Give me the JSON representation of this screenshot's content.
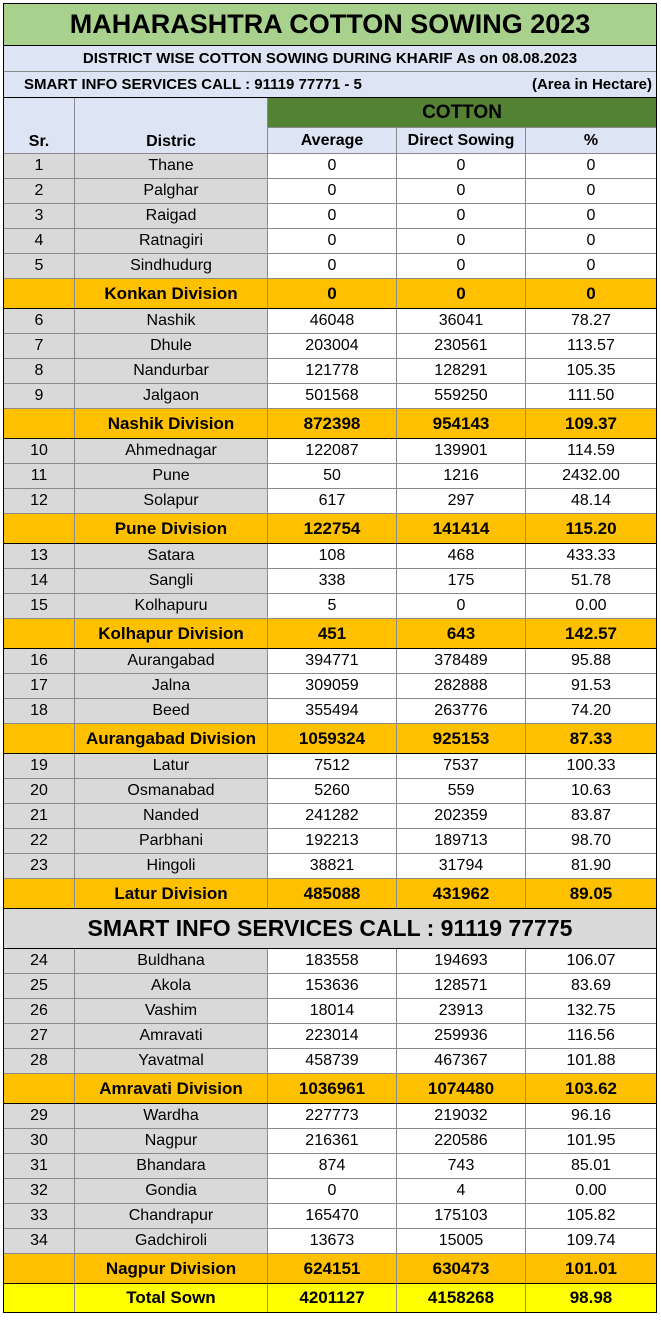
{
  "title": "MAHARASHTRA COTTON SOWING 2023",
  "subtitle": "DISTRICT WISE COTTON SOWING DURING KHARIF  As on 08.08.2023",
  "info_line": "SMART INFO SERVICES CALL : 91119 77771 - 5",
  "unit_note": "(Area in Hectare)",
  "headers": {
    "sr": "Sr.",
    "district": "Distric",
    "group": "COTTON",
    "average": "Average",
    "direct": "Direct Sowing",
    "percent": "%"
  },
  "banner": "SMART INFO SERVICES CALL : 91119 77775",
  "rows": [
    {
      "sr": "1",
      "district": "Thane",
      "average": "0",
      "direct": "0",
      "percent": "0"
    },
    {
      "sr": "2",
      "district": "Palghar",
      "average": "0",
      "direct": "0",
      "percent": "0"
    },
    {
      "sr": "3",
      "district": "Raigad",
      "average": "0",
      "direct": "0",
      "percent": "0"
    },
    {
      "sr": "4",
      "district": "Ratnagiri",
      "average": "0",
      "direct": "0",
      "percent": "0"
    },
    {
      "sr": "5",
      "district": "Sindhudurg",
      "average": "0",
      "direct": "0",
      "percent": "0"
    },
    {
      "type": "division",
      "district": "Konkan Division",
      "average": "0",
      "direct": "0",
      "percent": "0"
    },
    {
      "sr": "6",
      "district": "Nashik",
      "average": "46048",
      "direct": "36041",
      "percent": "78.27"
    },
    {
      "sr": "7",
      "district": "Dhule",
      "average": "203004",
      "direct": "230561",
      "percent": "113.57"
    },
    {
      "sr": "8",
      "district": "Nandurbar",
      "average": "121778",
      "direct": "128291",
      "percent": "105.35"
    },
    {
      "sr": "9",
      "district": "Jalgaon",
      "average": "501568",
      "direct": "559250",
      "percent": "111.50"
    },
    {
      "type": "division",
      "district": "Nashik Division",
      "average": "872398",
      "direct": "954143",
      "percent": "109.37"
    },
    {
      "sr": "10",
      "district": "Ahmednagar",
      "average": "122087",
      "direct": "139901",
      "percent": "114.59"
    },
    {
      "sr": "11",
      "district": "Pune",
      "average": "50",
      "direct": "1216",
      "percent": "2432.00"
    },
    {
      "sr": "12",
      "district": "Solapur",
      "average": "617",
      "direct": "297",
      "percent": "48.14"
    },
    {
      "type": "division",
      "district": "Pune Division",
      "average": "122754",
      "direct": "141414",
      "percent": "115.20"
    },
    {
      "sr": "13",
      "district": "Satara",
      "average": "108",
      "direct": "468",
      "percent": "433.33"
    },
    {
      "sr": "14",
      "district": "Sangli",
      "average": "338",
      "direct": "175",
      "percent": "51.78"
    },
    {
      "sr": "15",
      "district": "Kolhapuru",
      "average": "5",
      "direct": "0",
      "percent": "0.00"
    },
    {
      "type": "division",
      "district": "Kolhapur Division",
      "average": "451",
      "direct": "643",
      "percent": "142.57"
    },
    {
      "sr": "16",
      "district": "Aurangabad",
      "average": "394771",
      "direct": "378489",
      "percent": "95.88"
    },
    {
      "sr": "17",
      "district": "Jalna",
      "average": "309059",
      "direct": "282888",
      "percent": "91.53"
    },
    {
      "sr": "18",
      "district": "Beed",
      "average": "355494",
      "direct": "263776",
      "percent": "74.20"
    },
    {
      "type": "division",
      "district": "Aurangabad Division",
      "average": "1059324",
      "direct": "925153",
      "percent": "87.33"
    },
    {
      "sr": "19",
      "district": "Latur",
      "average": "7512",
      "direct": "7537",
      "percent": "100.33"
    },
    {
      "sr": "20",
      "district": "Osmanabad",
      "average": "5260",
      "direct": "559",
      "percent": "10.63"
    },
    {
      "sr": "21",
      "district": "Nanded",
      "average": "241282",
      "direct": "202359",
      "percent": "83.87"
    },
    {
      "sr": "22",
      "district": "Parbhani",
      "average": "192213",
      "direct": "189713",
      "percent": "98.70"
    },
    {
      "sr": "23",
      "district": "Hingoli",
      "average": "38821",
      "direct": "31794",
      "percent": "81.90"
    },
    {
      "type": "division",
      "district": "Latur Division",
      "average": "485088",
      "direct": "431962",
      "percent": "89.05"
    },
    {
      "type": "banner"
    },
    {
      "sr": "24",
      "district": "Buldhana",
      "average": "183558",
      "direct": "194693",
      "percent": "106.07"
    },
    {
      "sr": "25",
      "district": "Akola",
      "average": "153636",
      "direct": "128571",
      "percent": "83.69"
    },
    {
      "sr": "26",
      "district": "Vashim",
      "average": "18014",
      "direct": "23913",
      "percent": "132.75"
    },
    {
      "sr": "27",
      "district": "Amravati",
      "average": "223014",
      "direct": "259936",
      "percent": "116.56"
    },
    {
      "sr": "28",
      "district": "Yavatmal",
      "average": "458739",
      "direct": "467367",
      "percent": "101.88"
    },
    {
      "type": "division",
      "district": "Amravati Division",
      "average": "1036961",
      "direct": "1074480",
      "percent": "103.62"
    },
    {
      "sr": "29",
      "district": "Wardha",
      "average": "227773",
      "direct": "219032",
      "percent": "96.16"
    },
    {
      "sr": "30",
      "district": "Nagpur",
      "average": "216361",
      "direct": "220586",
      "percent": "101.95"
    },
    {
      "sr": "31",
      "district": "Bhandara",
      "average": "874",
      "direct": "743",
      "percent": "85.01"
    },
    {
      "sr": "32",
      "district": "Gondia",
      "average": "0",
      "direct": "4",
      "percent": "0.00"
    },
    {
      "sr": "33",
      "district": "Chandrapur",
      "average": "165470",
      "direct": "175103",
      "percent": "105.82"
    },
    {
      "sr": "34",
      "district": "Gadchiroli",
      "average": "13673",
      "direct": "15005",
      "percent": "109.74"
    },
    {
      "type": "division",
      "district": "Nagpur Division",
      "average": "624151",
      "direct": "630473",
      "percent": "101.01"
    },
    {
      "type": "total",
      "district": "Total Sown",
      "average": "4201127",
      "direct": "4158268",
      "percent": "98.98"
    }
  ]
}
